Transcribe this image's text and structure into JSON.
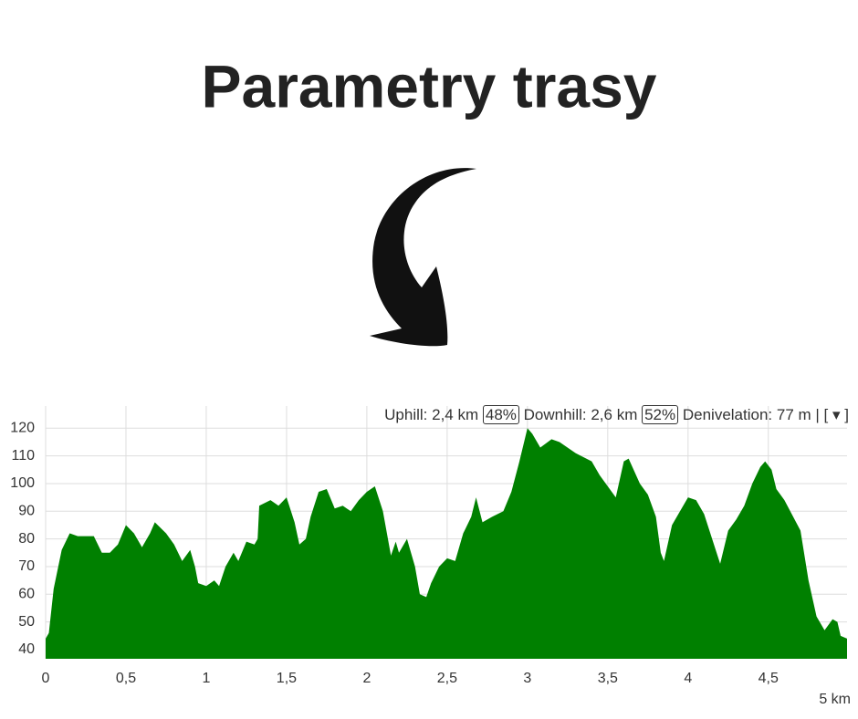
{
  "title": "Parametry trasy",
  "chart_data": {
    "type": "area",
    "summary": {
      "uphill": "Uphill: 2,4 km",
      "uphill_pct": "48%",
      "downhill": "Downhill: 2,6 km",
      "downhill_pct": "52%",
      "denivelation": "Denivelation: 77 m | [",
      "toggle": "▾",
      "close": "]"
    },
    "x_label": "5 km",
    "color": "#008000",
    "grid": true,
    "xlim": [
      0,
      4.99
    ],
    "ylim": [
      36.7,
      128
    ],
    "xticks": [
      0,
      {
        "value": 0.5,
        "label": "0,5"
      },
      1,
      {
        "value": 1.5,
        "label": "1,5"
      },
      2,
      {
        "value": 2.5,
        "label": "2,5"
      },
      3,
      {
        "value": 3.5,
        "label": "3,5"
      },
      4,
      {
        "value": 4.5,
        "label": "4,5"
      }
    ],
    "yticks": [
      40,
      50,
      60,
      70,
      80,
      90,
      100,
      110,
      120
    ],
    "x": [
      0,
      0.02,
      0.05,
      0.1,
      0.15,
      0.2,
      0.25,
      0.3,
      0.35,
      0.4,
      0.45,
      0.5,
      0.55,
      0.6,
      0.65,
      0.68,
      0.75,
      0.8,
      0.85,
      0.9,
      0.93,
      0.95,
      1.0,
      1.05,
      1.08,
      1.12,
      1.17,
      1.2,
      1.25,
      1.3,
      1.32,
      1.33,
      1.4,
      1.45,
      1.5,
      1.55,
      1.58,
      1.62,
      1.65,
      1.7,
      1.75,
      1.8,
      1.85,
      1.9,
      1.95,
      2.0,
      2.05,
      2.1,
      2.15,
      2.18,
      2.2,
      2.25,
      2.3,
      2.33,
      2.37,
      2.4,
      2.45,
      2.5,
      2.55,
      2.6,
      2.65,
      2.68,
      2.72,
      2.78,
      2.85,
      2.9,
      2.95,
      3.0,
      3.03,
      3.08,
      3.15,
      3.2,
      3.3,
      3.4,
      3.45,
      3.5,
      3.55,
      3.6,
      3.63,
      3.7,
      3.75,
      3.8,
      3.83,
      3.85,
      3.9,
      3.95,
      4.0,
      4.05,
      4.1,
      4.15,
      4.2,
      4.25,
      4.3,
      4.35,
      4.4,
      4.45,
      4.48,
      4.52,
      4.55,
      4.6,
      4.7,
      4.75,
      4.8,
      4.85,
      4.9,
      4.93,
      4.95,
      4.99
    ],
    "values": [
      44,
      46,
      62,
      76,
      82,
      81,
      81,
      81,
      75,
      75,
      78,
      85,
      82,
      77,
      82,
      86,
      82,
      78,
      72,
      76,
      70,
      64,
      63,
      65,
      63,
      70,
      75,
      72,
      79,
      78,
      80,
      92,
      94,
      92,
      95,
      86,
      78,
      80,
      88,
      97,
      98,
      91,
      92,
      90,
      94,
      97,
      99,
      90,
      74,
      79,
      75,
      80,
      70,
      60,
      59,
      64,
      70,
      73,
      72,
      82,
      88,
      95,
      86,
      88,
      90,
      97,
      108,
      120,
      118,
      113,
      116,
      115,
      111,
      108,
      103,
      99,
      95,
      108,
      109,
      100,
      96,
      88,
      75,
      72,
      85,
      90,
      95,
      94,
      89,
      80,
      71,
      83,
      87,
      92,
      100,
      106,
      108,
      105,
      98,
      94,
      83,
      65,
      52,
      47,
      51,
      50,
      45,
      44
    ]
  }
}
